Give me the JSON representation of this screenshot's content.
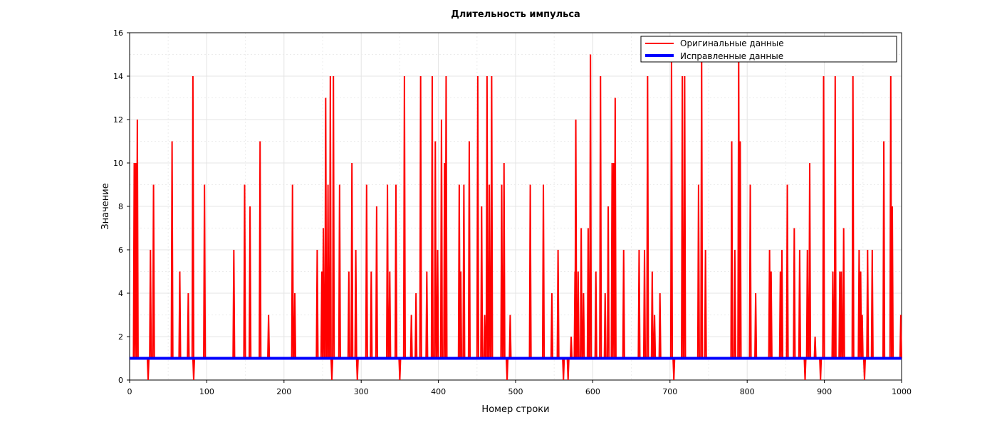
{
  "chart_data": {
    "type": "line",
    "title": "Длительность импульса",
    "xlabel": "Номер строки",
    "ylabel": "Значение",
    "xlim": [
      0,
      1000
    ],
    "ylim": [
      0,
      16
    ],
    "x_ticks": [
      "0",
      "100",
      "200",
      "300",
      "400",
      "500",
      "600",
      "700",
      "800",
      "900",
      "1000"
    ],
    "y_ticks": [
      "0",
      "2",
      "4",
      "6",
      "8",
      "10",
      "12",
      "14",
      "16"
    ],
    "grid": true,
    "legend_position": "top-right",
    "series": [
      {
        "name": "Оригинальные данные",
        "color": "#ff0000",
        "spikes": [
          [
            6,
            10
          ],
          [
            8,
            10
          ],
          [
            10,
            12
          ],
          [
            24,
            0
          ],
          [
            27,
            6
          ],
          [
            31,
            9
          ],
          [
            55,
            11
          ],
          [
            65,
            5
          ],
          [
            76,
            4
          ],
          [
            82,
            14
          ],
          [
            83,
            0
          ],
          [
            97,
            9
          ],
          [
            135,
            6
          ],
          [
            149,
            9
          ],
          [
            156,
            8
          ],
          [
            169,
            11
          ],
          [
            180,
            3
          ],
          [
            211,
            9
          ],
          [
            214,
            4
          ],
          [
            243,
            6
          ],
          [
            249,
            5
          ],
          [
            251,
            7
          ],
          [
            254,
            13
          ],
          [
            257,
            9
          ],
          [
            260,
            14
          ],
          [
            262,
            0
          ],
          [
            264,
            14
          ],
          [
            272,
            9
          ],
          [
            284,
            5
          ],
          [
            288,
            10
          ],
          [
            293,
            6
          ],
          [
            295,
            0
          ],
          [
            307,
            9
          ],
          [
            313,
            5
          ],
          [
            320,
            8
          ],
          [
            334,
            9
          ],
          [
            337,
            5
          ],
          [
            345,
            9
          ],
          [
            350,
            0
          ],
          [
            356,
            14
          ],
          [
            365,
            3
          ],
          [
            371,
            4
          ],
          [
            377,
            14
          ],
          [
            385,
            5
          ],
          [
            392,
            14
          ],
          [
            396,
            11
          ],
          [
            399,
            6
          ],
          [
            404,
            12
          ],
          [
            408,
            10
          ],
          [
            410,
            14
          ],
          [
            427,
            9
          ],
          [
            429,
            5
          ],
          [
            433,
            9
          ],
          [
            440,
            11
          ],
          [
            451,
            14
          ],
          [
            456,
            8
          ],
          [
            460,
            3
          ],
          [
            463,
            14
          ],
          [
            466,
            9
          ],
          [
            469,
            14
          ],
          [
            482,
            9
          ],
          [
            485,
            10
          ],
          [
            489,
            0
          ],
          [
            493,
            3
          ],
          [
            519,
            9
          ],
          [
            536,
            9
          ],
          [
            547,
            4
          ],
          [
            555,
            6
          ],
          [
            562,
            0
          ],
          [
            568,
            0
          ],
          [
            572,
            2
          ],
          [
            577,
            5
          ],
          [
            578,
            12
          ],
          [
            581,
            5
          ],
          [
            585,
            7
          ],
          [
            588,
            4
          ],
          [
            594,
            7
          ],
          [
            597,
            15
          ],
          [
            604,
            5
          ],
          [
            610,
            14
          ],
          [
            616,
            4
          ],
          [
            620,
            8
          ],
          [
            625,
            10
          ],
          [
            627,
            10
          ],
          [
            629,
            13
          ],
          [
            640,
            6
          ],
          [
            660,
            6
          ],
          [
            667,
            6
          ],
          [
            671,
            14
          ],
          [
            677,
            5
          ],
          [
            680,
            3
          ],
          [
            687,
            4
          ],
          [
            702,
            15
          ],
          [
            705,
            0
          ],
          [
            716,
            14
          ],
          [
            719,
            14
          ],
          [
            737,
            9
          ],
          [
            741,
            15
          ],
          [
            746,
            6
          ],
          [
            780,
            11
          ],
          [
            784,
            6
          ],
          [
            789,
            15
          ],
          [
            791,
            11
          ],
          [
            804,
            9
          ],
          [
            811,
            4
          ],
          [
            829,
            6
          ],
          [
            831,
            5
          ],
          [
            843,
            5
          ],
          [
            845,
            6
          ],
          [
            852,
            9
          ],
          [
            861,
            7
          ],
          [
            868,
            6
          ],
          [
            875,
            0
          ],
          [
            878,
            6
          ],
          [
            881,
            10
          ],
          [
            888,
            2
          ],
          [
            895,
            0
          ],
          [
            899,
            14
          ],
          [
            911,
            5
          ],
          [
            914,
            14
          ],
          [
            920,
            5
          ],
          [
            922,
            5
          ],
          [
            925,
            7
          ],
          [
            937,
            14
          ],
          [
            945,
            6
          ],
          [
            947,
            5
          ],
          [
            949,
            3
          ],
          [
            952,
            0
          ],
          [
            956,
            6
          ],
          [
            962,
            6
          ],
          [
            977,
            11
          ],
          [
            986,
            14
          ],
          [
            988,
            8
          ],
          [
            999,
            3
          ]
        ]
      },
      {
        "name": "Исправленные данные",
        "color": "#0000ff",
        "constant": 1
      }
    ]
  }
}
